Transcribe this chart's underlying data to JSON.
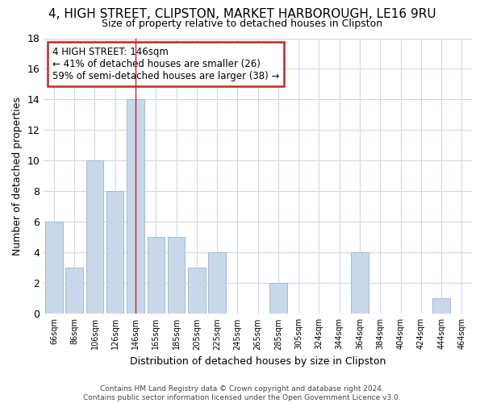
{
  "title1": "4, HIGH STREET, CLIPSTON, MARKET HARBOROUGH, LE16 9RU",
  "title2": "Size of property relative to detached houses in Clipston",
  "xlabel": "Distribution of detached houses by size in Clipston",
  "ylabel": "Number of detached properties",
  "categories": [
    "66sqm",
    "86sqm",
    "106sqm",
    "126sqm",
    "146sqm",
    "165sqm",
    "185sqm",
    "205sqm",
    "225sqm",
    "245sqm",
    "265sqm",
    "285sqm",
    "305sqm",
    "324sqm",
    "344sqm",
    "364sqm",
    "384sqm",
    "404sqm",
    "424sqm",
    "444sqm",
    "464sqm"
  ],
  "values": [
    6,
    3,
    10,
    8,
    14,
    5,
    5,
    3,
    4,
    0,
    0,
    2,
    0,
    0,
    0,
    4,
    0,
    0,
    0,
    1,
    0
  ],
  "bar_color": "#c8d8ea",
  "bar_edge_color": "#a0bcd0",
  "highlight_index": 4,
  "highlight_line_color": "#cc2222",
  "ylim": [
    0,
    18
  ],
  "yticks": [
    0,
    2,
    4,
    6,
    8,
    10,
    12,
    14,
    16,
    18
  ],
  "annotation_line1": "4 HIGH STREET: 146sqm",
  "annotation_line2": "← 41% of detached houses are smaller (26)",
  "annotation_line3": "59% of semi-detached houses are larger (38) →",
  "annotation_box_color": "#ffffff",
  "annotation_box_edge": "#cc2222",
  "footer_line1": "Contains HM Land Registry data © Crown copyright and database right 2024.",
  "footer_line2": "Contains public sector information licensed under the Open Government Licence v3.0.",
  "bg_color": "#ffffff",
  "plot_bg_color": "#ffffff",
  "grid_color": "#d0d8e8",
  "title1_fontsize": 11,
  "title2_fontsize": 9,
  "ylabel_fontsize": 9,
  "xlabel_fontsize": 9
}
